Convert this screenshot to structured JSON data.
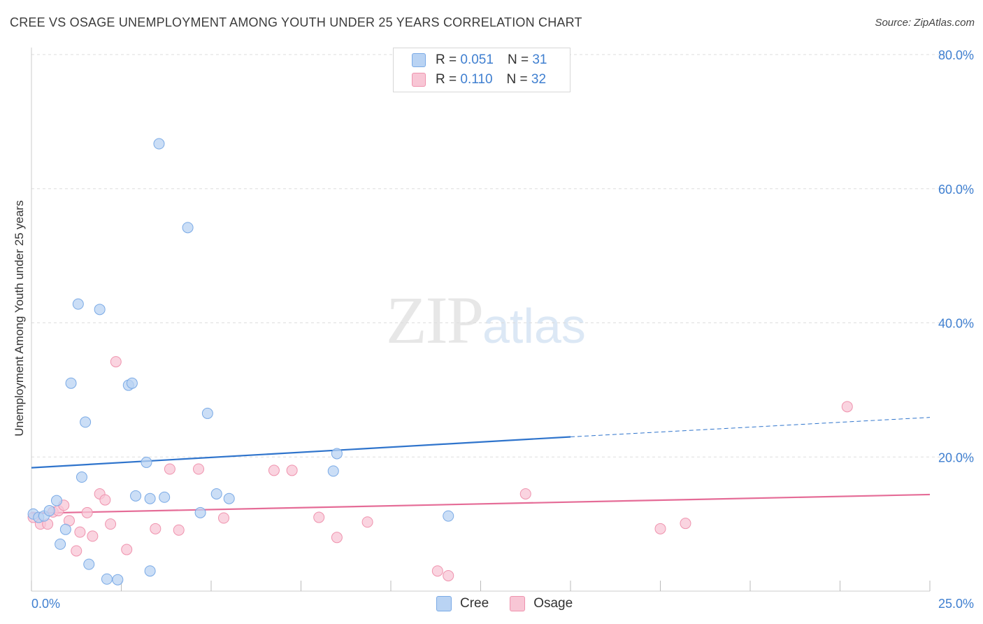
{
  "header": {
    "title": "CREE VS OSAGE UNEMPLOYMENT AMONG YOUTH UNDER 25 YEARS CORRELATION CHART",
    "source": "Source: ZipAtlas.com"
  },
  "watermark": {
    "zip": "ZIP",
    "atlas": "atlas"
  },
  "legend": {
    "rows": [
      {
        "r_label": "R =",
        "r_value": "0.051",
        "n_label": "N =",
        "n_value": "31"
      },
      {
        "r_label": "R =",
        "r_value": "0.110",
        "n_label": "N =",
        "n_value": "32"
      }
    ]
  },
  "bottom_legend": {
    "cree": "Cree",
    "osage": "Osage"
  },
  "colors": {
    "cree_fill": "#b9d3f3",
    "cree_stroke": "#7aaae6",
    "cree_line": "#2f74cc",
    "osage_fill": "#f8c6d5",
    "osage_stroke": "#ef93ae",
    "osage_line": "#e56c97",
    "grid": "#dddddd",
    "tick_text": "#3f7fd0"
  },
  "chart_data": {
    "type": "scatter",
    "title": "CREE VS OSAGE UNEMPLOYMENT AMONG YOUTH UNDER 25 YEARS CORRELATION CHART",
    "xlabel": "",
    "ylabel": "Unemployment Among Youth under 25 years",
    "xlim": [
      0,
      25
    ],
    "ylim": [
      0,
      80
    ],
    "x_tick_labels": [
      "0.0%",
      "25.0%"
    ],
    "y_ticks": [
      20,
      40,
      60,
      80
    ],
    "y_tick_labels": [
      "20.0%",
      "40.0%",
      "60.0%",
      "80.0%"
    ],
    "grid": true,
    "series": [
      {
        "name": "Cree",
        "r": 0.051,
        "n": 31,
        "points": [
          {
            "x": 0.05,
            "y": 11.5
          },
          {
            "x": 0.2,
            "y": 11.0
          },
          {
            "x": 0.35,
            "y": 11.2
          },
          {
            "x": 0.5,
            "y": 12.0
          },
          {
            "x": 0.7,
            "y": 13.5
          },
          {
            "x": 0.8,
            "y": 7.0
          },
          {
            "x": 0.95,
            "y": 9.2
          },
          {
            "x": 1.1,
            "y": 31.0
          },
          {
            "x": 1.3,
            "y": 42.8
          },
          {
            "x": 1.4,
            "y": 17.0
          },
          {
            "x": 1.5,
            "y": 25.2
          },
          {
            "x": 1.6,
            "y": 4.0
          },
          {
            "x": 1.9,
            "y": 42.0
          },
          {
            "x": 2.1,
            "y": 1.8
          },
          {
            "x": 2.4,
            "y": 1.7
          },
          {
            "x": 2.7,
            "y": 30.7
          },
          {
            "x": 2.8,
            "y": 31.0
          },
          {
            "x": 2.9,
            "y": 14.2
          },
          {
            "x": 3.2,
            "y": 19.2
          },
          {
            "x": 3.3,
            "y": 3.0
          },
          {
            "x": 3.3,
            "y": 13.8
          },
          {
            "x": 3.55,
            "y": 66.7
          },
          {
            "x": 3.7,
            "y": 14.0
          },
          {
            "x": 4.35,
            "y": 54.2
          },
          {
            "x": 4.7,
            "y": 11.7
          },
          {
            "x": 4.9,
            "y": 26.5
          },
          {
            "x": 5.15,
            "y": 14.5
          },
          {
            "x": 5.5,
            "y": 13.8
          },
          {
            "x": 8.4,
            "y": 17.9
          },
          {
            "x": 8.5,
            "y": 20.5
          },
          {
            "x": 11.6,
            "y": 11.2
          }
        ],
        "trend": {
          "x": [
            0,
            15,
            25
          ],
          "y": [
            18.4,
            23.0,
            25.9
          ],
          "solid_until_x": 15
        }
      },
      {
        "name": "Osage",
        "r": 0.11,
        "n": 32,
        "points": [
          {
            "x": 0.05,
            "y": 11.0
          },
          {
            "x": 0.25,
            "y": 10.0
          },
          {
            "x": 0.45,
            "y": 10.0
          },
          {
            "x": 0.6,
            "y": 11.8
          },
          {
            "x": 0.75,
            "y": 12.0
          },
          {
            "x": 0.9,
            "y": 12.8
          },
          {
            "x": 1.05,
            "y": 10.5
          },
          {
            "x": 1.25,
            "y": 6.0
          },
          {
            "x": 1.35,
            "y": 8.8
          },
          {
            "x": 1.55,
            "y": 11.7
          },
          {
            "x": 1.7,
            "y": 8.2
          },
          {
            "x": 1.9,
            "y": 14.5
          },
          {
            "x": 2.05,
            "y": 13.6
          },
          {
            "x": 2.2,
            "y": 10.0
          },
          {
            "x": 2.35,
            "y": 34.2
          },
          {
            "x": 2.65,
            "y": 6.2
          },
          {
            "x": 3.45,
            "y": 9.3
          },
          {
            "x": 3.85,
            "y": 18.2
          },
          {
            "x": 4.1,
            "y": 9.1
          },
          {
            "x": 4.65,
            "y": 18.2
          },
          {
            "x": 5.35,
            "y": 10.9
          },
          {
            "x": 6.75,
            "y": 18.0
          },
          {
            "x": 7.25,
            "y": 18.0
          },
          {
            "x": 8.0,
            "y": 11.0
          },
          {
            "x": 8.5,
            "y": 8.0
          },
          {
            "x": 9.35,
            "y": 10.3
          },
          {
            "x": 11.3,
            "y": 3.0
          },
          {
            "x": 11.6,
            "y": 2.3
          },
          {
            "x": 13.75,
            "y": 14.5
          },
          {
            "x": 17.5,
            "y": 9.3
          },
          {
            "x": 18.2,
            "y": 10.1
          },
          {
            "x": 22.7,
            "y": 27.5
          }
        ],
        "trend": {
          "x": [
            0,
            25
          ],
          "y": [
            11.6,
            14.4
          ],
          "solid_until_x": 25
        }
      }
    ]
  }
}
